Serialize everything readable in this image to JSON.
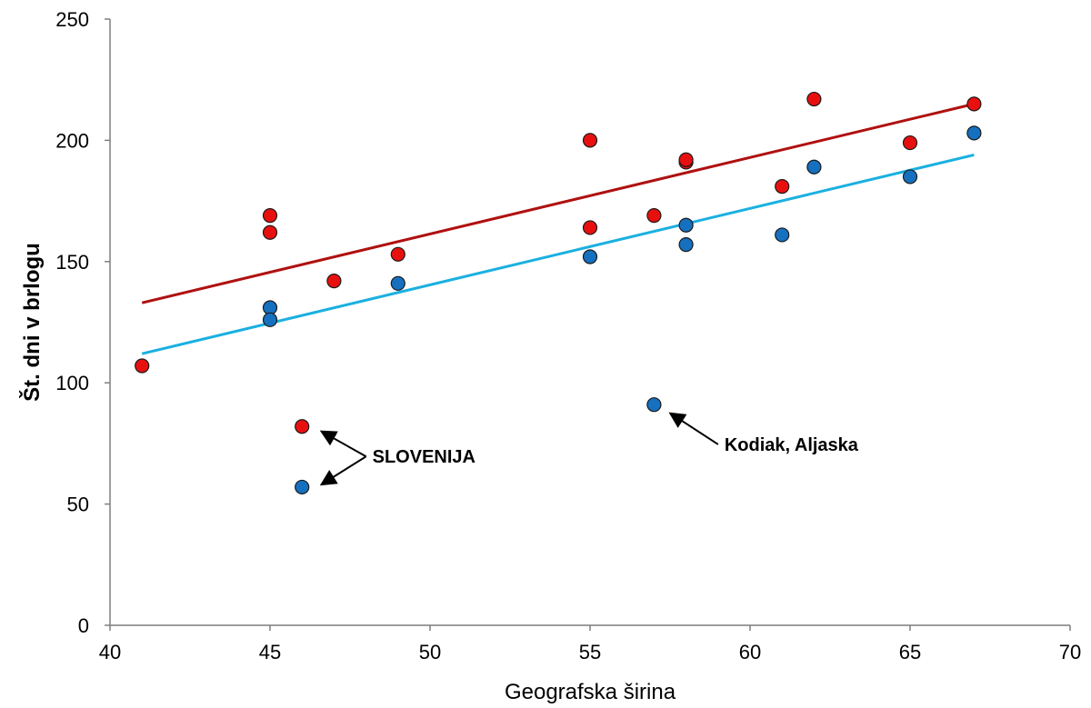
{
  "chart_data": {
    "type": "scatter",
    "xlabel": "Geografska širina",
    "ylabel": "Št. dni v brlogu",
    "xlim": [
      40,
      70
    ],
    "ylim": [
      0,
      250
    ],
    "x_ticks": [
      40,
      45,
      50,
      55,
      60,
      65,
      70
    ],
    "y_ticks": [
      0,
      50,
      100,
      150,
      200,
      250
    ],
    "grid": false,
    "legend": "none",
    "series": [
      {
        "color": "#e8100f",
        "points": [
          {
            "x": 41,
            "y": 107
          },
          {
            "x": 45,
            "y": 169
          },
          {
            "x": 45,
            "y": 162
          },
          {
            "x": 46,
            "y": 82
          },
          {
            "x": 47,
            "y": 142
          },
          {
            "x": 49,
            "y": 153
          },
          {
            "x": 55,
            "y": 200
          },
          {
            "x": 55,
            "y": 164
          },
          {
            "x": 57,
            "y": 169
          },
          {
            "x": 58,
            "y": 191
          },
          {
            "x": 58,
            "y": 192
          },
          {
            "x": 61,
            "y": 181
          },
          {
            "x": 62,
            "y": 217
          },
          {
            "x": 65,
            "y": 199
          },
          {
            "x": 67,
            "y": 215
          }
        ],
        "trendline": {
          "color": "#b01010",
          "x": [
            41,
            67
          ],
          "y": [
            133,
            215
          ]
        }
      },
      {
        "color": "#1670c0",
        "points": [
          {
            "x": 45,
            "y": 131
          },
          {
            "x": 45,
            "y": 126
          },
          {
            "x": 46,
            "y": 57
          },
          {
            "x": 49,
            "y": 141
          },
          {
            "x": 55,
            "y": 152
          },
          {
            "x": 57,
            "y": 91
          },
          {
            "x": 58,
            "y": 165
          },
          {
            "x": 58,
            "y": 157
          },
          {
            "x": 61,
            "y": 161
          },
          {
            "x": 62,
            "y": 189
          },
          {
            "x": 65,
            "y": 185
          },
          {
            "x": 67,
            "y": 203
          }
        ],
        "trendline": {
          "color": "#1ab0e0",
          "x": [
            41,
            67
          ],
          "y": [
            112,
            194
          ]
        }
      }
    ],
    "annotations": [
      {
        "text": "SLOVENIJA",
        "x": 48.2,
        "y": 67,
        "arrows_to": [
          {
            "x": 46.6,
            "y": 80
          },
          {
            "x": 46.6,
            "y": 58
          }
        ]
      },
      {
        "text": "Kodiak, Aljaska",
        "x": 59.2,
        "y": 72,
        "arrows_to": [
          {
            "x": 57.5,
            "y": 87.5
          }
        ]
      }
    ]
  }
}
